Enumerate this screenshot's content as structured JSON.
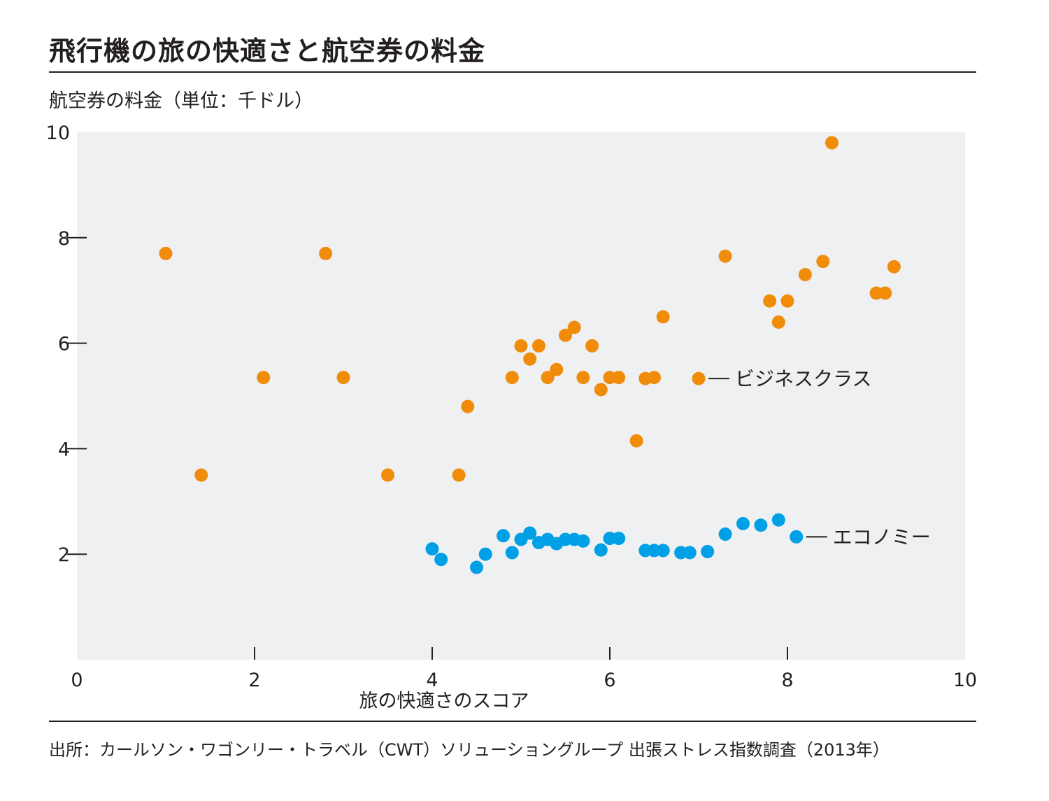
{
  "title": "飛行機の旅の快適さと航空券の料金",
  "source": "出所：カールソン・ワゴンリー・トラベル（CWT）ソリューショングループ 出張ストレス指数調査（2013年）",
  "chart_data": {
    "type": "scatter",
    "title": "飛行機の旅の快適さと航空券の料金",
    "xlabel": "旅の快適さのスコア",
    "ylabel": "航空券の料金（単位：千ドル）",
    "xlim": [
      0,
      10
    ],
    "ylim": [
      0,
      10
    ],
    "xticks": [
      0,
      2,
      4,
      6,
      8,
      10
    ],
    "yticks": [
      2,
      4,
      6,
      8,
      10
    ],
    "background": "#eff0f1",
    "series": [
      {
        "name": "ビジネスクラス",
        "color": "#f08c0a",
        "points": [
          [
            1.0,
            7.7
          ],
          [
            1.4,
            3.5
          ],
          [
            2.1,
            5.35
          ],
          [
            2.8,
            7.7
          ],
          [
            3.0,
            5.35
          ],
          [
            3.5,
            3.5
          ],
          [
            4.3,
            3.5
          ],
          [
            4.4,
            4.8
          ],
          [
            4.9,
            5.35
          ],
          [
            5.0,
            5.95
          ],
          [
            5.1,
            5.7
          ],
          [
            5.2,
            5.95
          ],
          [
            5.3,
            5.35
          ],
          [
            5.4,
            5.5
          ],
          [
            5.5,
            6.15
          ],
          [
            5.6,
            6.3
          ],
          [
            5.7,
            5.35
          ],
          [
            5.8,
            5.95
          ],
          [
            5.9,
            5.12
          ],
          [
            6.0,
            5.35
          ],
          [
            6.1,
            5.35
          ],
          [
            6.3,
            4.15
          ],
          [
            6.4,
            5.33
          ],
          [
            6.5,
            5.35
          ],
          [
            6.6,
            6.5
          ],
          [
            7.0,
            5.33
          ],
          [
            7.3,
            7.65
          ],
          [
            7.8,
            6.8
          ],
          [
            7.9,
            6.4
          ],
          [
            8.0,
            6.8
          ],
          [
            8.2,
            7.3
          ],
          [
            8.4,
            7.55
          ],
          [
            8.5,
            9.8
          ],
          [
            9.0,
            6.95
          ],
          [
            9.1,
            6.95
          ],
          [
            9.2,
            7.45
          ]
        ]
      },
      {
        "name": "エコノミー",
        "color": "#00a0e6",
        "points": [
          [
            4.0,
            2.1
          ],
          [
            4.1,
            1.9
          ],
          [
            4.5,
            1.75
          ],
          [
            4.6,
            2.0
          ],
          [
            4.8,
            2.35
          ],
          [
            4.9,
            2.03
          ],
          [
            5.0,
            2.28
          ],
          [
            5.1,
            2.4
          ],
          [
            5.2,
            2.22
          ],
          [
            5.3,
            2.28
          ],
          [
            5.4,
            2.2
          ],
          [
            5.5,
            2.28
          ],
          [
            5.6,
            2.28
          ],
          [
            5.7,
            2.25
          ],
          [
            5.9,
            2.08
          ],
          [
            6.0,
            2.3
          ],
          [
            6.1,
            2.3
          ],
          [
            6.4,
            2.07
          ],
          [
            6.5,
            2.07
          ],
          [
            6.6,
            2.07
          ],
          [
            6.8,
            2.03
          ],
          [
            6.9,
            2.03
          ],
          [
            7.1,
            2.05
          ],
          [
            7.3,
            2.38
          ],
          [
            7.5,
            2.58
          ],
          [
            7.7,
            2.55
          ],
          [
            7.9,
            2.65
          ],
          [
            8.1,
            2.33
          ]
        ]
      }
    ]
  }
}
